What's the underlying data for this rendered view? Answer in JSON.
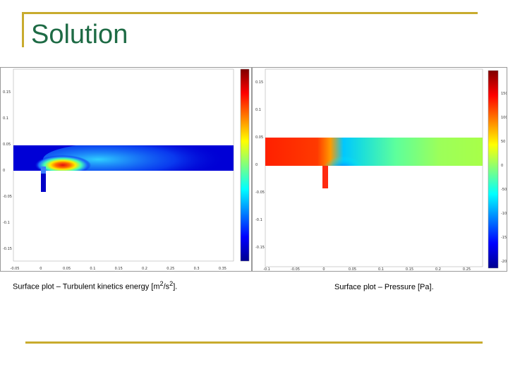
{
  "slide": {
    "title": "Solution",
    "colors": {
      "title": "#1e6b45",
      "accent_rule": "#c8ab2e"
    }
  },
  "plots": {
    "left": {
      "caption_text": "Surface plot – Turbulent kinetics energy [m",
      "caption_sup_1": "2",
      "caption_mid": "/s",
      "caption_sup_2": "2",
      "caption_end": "].",
      "y_ticks": [
        "0.15",
        "0.1",
        "0.05",
        "0",
        "-0.05",
        "-0.1",
        "-0.15"
      ],
      "x_ticks": [
        "-0.05",
        "0",
        "0.05",
        "0.1",
        "0.15",
        "0.2",
        "0.25",
        "0.3",
        "0.35"
      ],
      "colormap": "jet"
    },
    "right": {
      "caption": "Surface plot – Pressure [Pa].",
      "y_ticks": [
        "0.15",
        "0.1",
        "0.05",
        "0",
        "-0.05",
        "-0.1",
        "-0.15"
      ],
      "x_ticks": [
        "-0.1",
        "-0.05",
        "0",
        "0.05",
        "0.1",
        "0.15",
        "0.2",
        "0.25"
      ],
      "colorbar_ticks": [
        "150",
        "100",
        "50",
        "0",
        "-50",
        "-100",
        "-150",
        "-200"
      ],
      "colormap": "jet"
    }
  }
}
